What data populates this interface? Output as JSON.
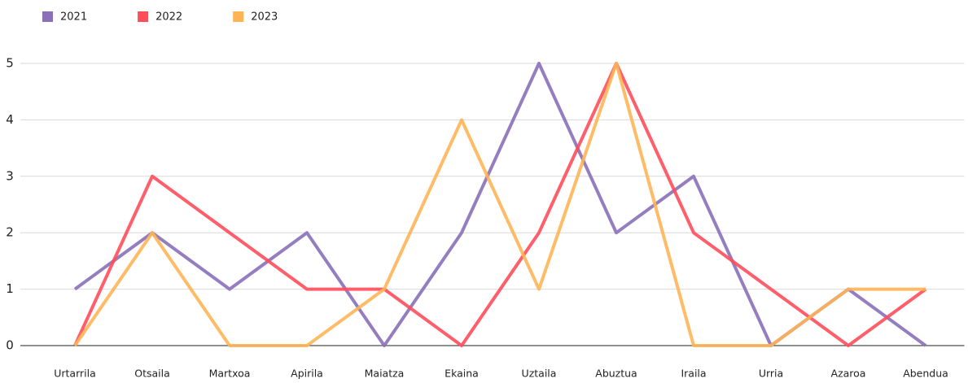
{
  "chart_data": {
    "type": "line",
    "categories": [
      "Urtarrila",
      "Otsaila",
      "Martxoa",
      "Apirila",
      "Maiatza",
      "Ekaina",
      "Uztaila",
      "Abuztua",
      "Iraila",
      "Urria",
      "Azaroa",
      "Abendua"
    ],
    "series": [
      {
        "name": "2021",
        "color": "#8a70b8",
        "values": [
          1,
          2,
          1,
          2,
          0,
          2,
          5,
          2,
          3,
          0,
          1,
          0
        ]
      },
      {
        "name": "2022",
        "color": "#ff4d5a",
        "values": [
          0,
          3,
          2,
          1,
          1,
          0,
          2,
          5,
          2,
          1,
          0,
          1
        ]
      },
      {
        "name": "2023",
        "color": "#ffb454",
        "values": [
          0,
          2,
          0,
          0,
          1,
          4,
          1,
          5,
          0,
          0,
          1,
          1
        ]
      }
    ],
    "ylim": [
      0,
      5
    ],
    "yticks": [
      0,
      1,
      2,
      3,
      4,
      5
    ],
    "grid": true,
    "legend": "top-left"
  }
}
